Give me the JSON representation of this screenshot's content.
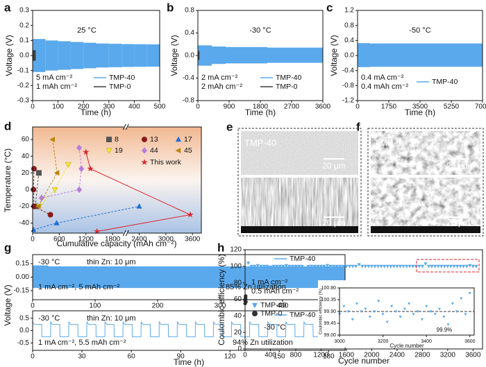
{
  "chart_data": [
    {
      "type": "band",
      "panel_label": "a",
      "x_label": "Time (h)",
      "y_label": "Voltage (V)",
      "xlim": [
        0,
        500
      ],
      "xticks": [
        0,
        100,
        200,
        300,
        400,
        500
      ],
      "ylim": [
        -0.3,
        0.3
      ],
      "yticks": [
        -0.3,
        -0.2,
        -0.1,
        {
          "value": 0,
          "label": "0.0"
        },
        0.1,
        0.2,
        0.3
      ],
      "annotations": [
        "25 °C",
        "5 mA cm⁻²",
        "1 mAh cm⁻²"
      ],
      "series": [
        {
          "name": "TMP-40",
          "color": "#5aa9ec",
          "x": [
            0,
            50,
            100,
            150,
            200,
            250,
            300,
            350,
            400,
            450
          ],
          "upper": [
            0.11,
            0.1,
            0.095,
            0.09,
            0.085,
            0.08,
            0.078,
            0.076,
            0.075,
            0.074
          ],
          "lower": [
            -0.11,
            -0.1,
            -0.095,
            -0.09,
            -0.085,
            -0.08,
            -0.078,
            -0.076,
            -0.075,
            -0.074
          ]
        },
        {
          "name": "TMP-0",
          "color": "#3a3a3a",
          "x": [
            0,
            4,
            8
          ],
          "upper": [
            0.035,
            0.035,
            0.035
          ],
          "lower": [
            -0.035,
            -0.035,
            -0.035
          ]
        }
      ]
    },
    {
      "type": "band",
      "panel_label": "b",
      "x_label": "Time (h)",
      "y_label": "Voltage (V)",
      "xlim": [
        0,
        3600
      ],
      "xticks": [
        0,
        900,
        1800,
        2700,
        3600
      ],
      "ylim": [
        -0.8,
        0.8
      ],
      "yticks": [
        -0.8,
        -0.4,
        {
          "value": 0,
          "label": "0.0"
        },
        0.4,
        0.8
      ],
      "annotations": [
        "-30 °C",
        "2 mA cm⁻²",
        "2 mAh cm⁻²"
      ],
      "series": [
        {
          "name": "TMP-40",
          "color": "#5aa9ec",
          "x": [
            0,
            400,
            800,
            1200,
            1600,
            2000,
            2400,
            2800,
            3200
          ],
          "upper": [
            0.18,
            0.16,
            0.15,
            0.15,
            0.15,
            0.14,
            0.14,
            0.14,
            0.14
          ],
          "lower": [
            -0.18,
            -0.15,
            -0.14,
            -0.14,
            -0.14,
            -0.13,
            -0.13,
            -0.13,
            -0.13
          ]
        },
        {
          "name": "TMP-0",
          "color": "#3a3a3a",
          "x": [
            0,
            15,
            30
          ],
          "upper": [
            0.08,
            0.08,
            0.08
          ],
          "lower": [
            -0.08,
            -0.08,
            -0.08
          ]
        }
      ]
    },
    {
      "type": "band",
      "panel_label": "c",
      "x_label": "Time (h)",
      "y_label": "Voltage (V)",
      "xlim": [
        0,
        7000
      ],
      "xticks": [
        0,
        1750,
        3500,
        5250,
        7000
      ],
      "ylim": [
        -1.2,
        1.2
      ],
      "yticks": [
        -1.2,
        -0.8,
        -0.4,
        {
          "value": 0,
          "label": "0.0"
        },
        0.4,
        0.8,
        1.2
      ],
      "annotations": [
        "-50 °C",
        "0.4 mA cm⁻²",
        "0.4 mAh cm⁻²"
      ],
      "series": [
        {
          "name": "TMP-40",
          "color": "#5aa9ec",
          "x": [
            0,
            700,
            1400,
            2100,
            2800,
            3500,
            4200,
            4900,
            5600,
            6300
          ],
          "upper": [
            0.33,
            0.32,
            0.32,
            0.32,
            0.32,
            0.32,
            0.32,
            0.32,
            0.32,
            0.32
          ],
          "lower": [
            -0.31,
            -0.3,
            -0.3,
            -0.3,
            -0.3,
            -0.3,
            -0.3,
            -0.3,
            -0.3,
            -0.3
          ]
        }
      ]
    },
    {
      "type": "scatter",
      "panel_label": "d",
      "x_label": "Cumulative capacity (mAh cm⁻²)",
      "y_label": "Temperature (°C)",
      "xlim": [
        0,
        3800
      ],
      "xticks": [
        0,
        600,
        1200,
        1800,
        2400,
        3000,
        3600
      ],
      "ylim": [
        -52,
        75
      ],
      "yticks": [
        -40,
        -20,
        0,
        20,
        40,
        60
      ],
      "series": [
        {
          "name": "8",
          "color": "#555555",
          "marker": "square",
          "line": "dashed",
          "x": [
            140,
            60
          ],
          "values": [
            20,
            -20
          ]
        },
        {
          "name": "13",
          "color": "#8b1a1a",
          "marker": "circle",
          "line": "dashed",
          "x": [
            30,
            20,
            30,
            400
          ],
          "values": [
            25,
            0,
            -20,
            -30
          ]
        },
        {
          "name": "17",
          "color": "#1f6fd6",
          "marker": "triangle-up",
          "line": "dashed",
          "x": [
            20,
            540,
            2400
          ],
          "values": [
            -48,
            -40,
            -20
          ]
        },
        {
          "name": "19",
          "color": "#f2e33a",
          "marker": "triangle-down",
          "line": "dashed",
          "x": [
            150,
            500,
            800
          ],
          "values": [
            -20,
            0,
            30
          ]
        },
        {
          "name": "44",
          "color": "#b57fdc",
          "marker": "diamond",
          "line": "dashed",
          "x": [
            1050,
            1100,
            1050,
            200
          ],
          "values": [
            50,
            25,
            0,
            -10
          ]
        },
        {
          "name": "45",
          "color": "#b8860b",
          "marker": "triangle-left",
          "line": "dashed",
          "x": [
            450,
            550,
            130
          ],
          "values": [
            60,
            20,
            -20
          ]
        },
        {
          "name": "This work",
          "color": "#e0202a",
          "marker": "star",
          "line": "solid",
          "x": [
            1200,
            1300,
            3550,
            1450
          ],
          "values": [
            45,
            25,
            -30,
            -50
          ]
        }
      ]
    },
    {
      "type": "band",
      "panel_label": "g",
      "y_label": "Voltage (V)",
      "xlim": [
        0,
        500
      ],
      "xticks": [
        0,
        100,
        200,
        300,
        400,
        500
      ],
      "ylim": [
        -0.25,
        0.25
      ],
      "yticks": [
        -0.15,
        {
          "value": 0,
          "label": "0.00"
        },
        0.15
      ],
      "annotations": [
        "-30 °C",
        "thin Zn: 10 μm",
        "1 mA cm⁻², 5 mAh cm⁻²",
        "85% Zn utilization"
      ],
      "series": [
        {
          "name": "TMP-40",
          "color": "#5aa9ec",
          "x": [
            0,
            25,
            50,
            75,
            100,
            125,
            150,
            175,
            200,
            225,
            250,
            275,
            300,
            325,
            350,
            375,
            400,
            425,
            450,
            475
          ],
          "upper": [
            0.13,
            0.12,
            0.12,
            0.12,
            0.12,
            0.12,
            0.12,
            0.12,
            0.12,
            0.12,
            0.12,
            0.12,
            0.12,
            0.12,
            0.12,
            0.12,
            0.12,
            0.12,
            0.12,
            0.12
          ],
          "lower": [
            -0.12,
            -0.12,
            -0.12,
            -0.12,
            -0.12,
            -0.12,
            -0.12,
            -0.12,
            -0.12,
            -0.12,
            -0.12,
            -0.12,
            -0.12,
            -0.12,
            -0.12,
            -0.12,
            -0.12,
            -0.12,
            -0.12,
            -0.12
          ]
        }
      ]
    },
    {
      "type": "line",
      "x_label": "Time (h)",
      "xlim": [
        0,
        190
      ],
      "xticks": [
        0,
        30,
        60,
        90,
        120,
        150,
        180
      ],
      "ylim": [
        -0.8,
        0.8
      ],
      "yticks": [
        -0.5,
        {
          "value": 0,
          "label": "0.0"
        },
        0.5
      ],
      "annotations": [
        "-30 °C",
        "thin Zn: 10 μm",
        "1 mA cm⁻², 5.5 mAh cm⁻²",
        "94% Zn utilization"
      ],
      "series": [
        {
          "name": "TMP-40",
          "color": "#5aa9ec",
          "x": [
            0,
            1,
            5.5,
            5.6,
            10.9,
            11,
            12,
            16.5,
            16.6,
            21.9,
            22,
            23,
            27.5,
            27.6,
            32.9,
            33,
            34,
            38.5,
            38.6,
            43.9,
            44,
            45,
            49.5,
            49.6,
            54.9,
            55,
            56,
            60.5,
            60.6,
            65.9,
            66,
            67,
            71.5,
            71.6,
            76.9,
            77,
            78,
            82.5,
            82.6,
            87.9,
            88,
            89,
            93.5,
            93.6,
            98.9,
            99,
            100,
            104.5,
            104.6,
            109.9,
            110,
            111,
            115.5,
            115.6,
            120.9,
            121,
            122,
            126.5,
            126.6,
            131.9,
            132,
            133,
            137.5,
            137.6,
            142.9,
            143,
            144,
            148.5,
            148.6,
            153.9,
            154,
            155,
            159.5,
            159.6,
            164.9,
            165,
            166,
            170.5,
            170.6,
            175.9,
            176,
            177,
            181.5,
            181.6,
            186.9
          ],
          "values": [
            0.35,
            0.25,
            0.25,
            -0.25,
            -0.25,
            0.35,
            0.25,
            0.25,
            -0.25,
            -0.25,
            0.35,
            0.25,
            0.25,
            -0.25,
            -0.25,
            0.35,
            0.25,
            0.25,
            -0.25,
            -0.25,
            0.35,
            0.25,
            0.25,
            -0.25,
            -0.25,
            0.35,
            0.25,
            0.25,
            -0.25,
            -0.25,
            0.35,
            0.25,
            0.25,
            -0.25,
            -0.25,
            0.35,
            0.25,
            0.25,
            -0.25,
            -0.25,
            0.35,
            0.25,
            0.25,
            -0.25,
            -0.25,
            0.35,
            0.25,
            0.25,
            -0.25,
            -0.25,
            0.35,
            0.25,
            0.25,
            -0.25,
            -0.25,
            0.35,
            0.25,
            0.25,
            -0.25,
            -0.25,
            0.35,
            0.25,
            0.25,
            -0.25,
            -0.25,
            0.35,
            0.25,
            0.25,
            -0.25,
            -0.25,
            0.35,
            0.25,
            0.25,
            -0.25,
            -0.25,
            0.35,
            0.25,
            0.25,
            -0.25,
            -0.25,
            0.35,
            0.25,
            0.25,
            -0.25,
            -0.25
          ]
        }
      ]
    },
    {
      "type": "scatter",
      "panel_label": "h",
      "x_label": "Cycle number",
      "y_label": "Coulombic efficiency (%)",
      "xlim": [
        0,
        3750
      ],
      "xticks": [
        0,
        400,
        800,
        1200,
        1600,
        2000,
        2400,
        2800,
        3200,
        3600
      ],
      "ylim": [
        0,
        120
      ],
      "yticks": [
        0,
        20,
        40,
        60,
        80,
        100,
        120
      ],
      "annotations": [
        "1 mA cm⁻²",
        "0.5 mAh cm⁻²",
        "-30 °C"
      ],
      "series": [
        {
          "name": "TMP-40",
          "color": "#5aa9ec",
          "marker": "triangle-down",
          "x": [
            0,
            50,
            100,
            150,
            200,
            250,
            300,
            350,
            400,
            450,
            500,
            550,
            600,
            650,
            700,
            750,
            800,
            850,
            900,
            950,
            1000,
            1050,
            1100,
            1150,
            1200,
            1250,
            1300,
            1350,
            1400,
            1450,
            1500,
            1550,
            1600,
            1650,
            1700,
            1750,
            1800,
            1850,
            1900,
            1950,
            2000,
            2050,
            2100,
            2150,
            2200,
            2250,
            2300,
            2350,
            2400,
            2450,
            2500,
            2550,
            2600,
            2650,
            2700,
            2750,
            2800,
            2850,
            2900,
            2950,
            3000,
            3050,
            3100,
            3150,
            3200,
            3250,
            3300,
            3350,
            3400,
            3450,
            3500,
            3550,
            3600,
            3650
          ],
          "values": [
            96,
            104,
            100,
            100,
            101,
            100,
            100,
            100,
            99,
            100,
            100,
            100,
            100,
            101,
            100,
            100,
            100,
            100,
            100,
            98,
            100,
            100,
            100,
            100,
            100,
            100,
            101,
            100,
            100,
            100,
            100,
            100,
            100,
            100,
            100,
            100,
            102,
            100,
            100,
            100,
            100,
            100,
            100,
            100,
            100,
            100,
            100,
            100,
            100,
            100,
            100,
            100,
            100,
            100,
            100,
            100,
            100,
            103,
            100,
            100,
            100,
            100,
            100,
            100,
            100,
            100,
            100,
            100,
            100,
            100,
            100,
            101,
            100,
            100
          ]
        },
        {
          "name": "TMP-0",
          "color": "#333333",
          "marker": "circle",
          "x": [
            1,
            3,
            5,
            7,
            9,
            11,
            13
          ],
          "values": [
            55,
            58,
            60,
            62,
            64,
            60,
            57
          ]
        }
      ]
    },
    {
      "type": "scatter",
      "x_label": "Cycle number",
      "y_label": "Coulombic efficiency (%)",
      "xlim": [
        3000,
        3620
      ],
      "xticks": [
        3000,
        3200,
        3400,
        3600
      ],
      "ylim": [
        99,
        100.8
      ],
      "yticks": [
        {
          "value": 99,
          "label": "99.00"
        },
        99.45,
        {
          "value": 99.9,
          "label": "99.90"
        },
        100.35,
        {
          "value": 100.8,
          "label": "100.80"
        }
      ],
      "hline": 99.9,
      "annotations": [
        "99.9%"
      ],
      "series": [
        {
          "color": "#5aa9ec",
          "marker": "triangle-down",
          "x": [
            3000,
            3020,
            3040,
            3060,
            3080,
            3100,
            3120,
            3140,
            3160,
            3180,
            3200,
            3220,
            3240,
            3260,
            3280,
            3300,
            3320,
            3340,
            3360,
            3380,
            3400,
            3420,
            3440,
            3460,
            3480,
            3500,
            3520,
            3540,
            3560,
            3580,
            3600
          ],
          "values": [
            99.8,
            100.1,
            99.9,
            99.6,
            100.2,
            99.9,
            100.0,
            99.7,
            99.9,
            100.3,
            99.8,
            99.5,
            100.1,
            99.9,
            99.7,
            100.0,
            100.2,
            99.8,
            99.9,
            99.6,
            100.1,
            99.9,
            99.8,
            100.0,
            99.7,
            99.4,
            100.2,
            99.9,
            100.4,
            99.8,
            100.6
          ]
        }
      ]
    }
  ],
  "images": [
    {
      "panel_label": "e",
      "label": "TMP-40",
      "scale_bars": [
        "20 μm",
        "20 μm"
      ]
    },
    {
      "panel_label": "f",
      "label": "TMP-0",
      "scale_bars": [
        "20 μm",
        "20 μm"
      ]
    }
  ]
}
